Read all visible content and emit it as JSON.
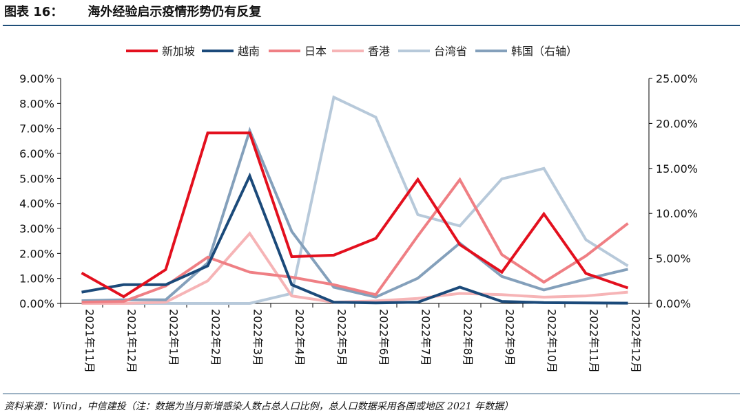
{
  "figure": {
    "label": "图表 16：",
    "title": "海外经验启示疫情形势仍有反复"
  },
  "source_note": "资料来源：Wind，中信建投（注：数据为当月新增感染人数占总人口比例，总人口数据采用各国或地区 2021 年数据）",
  "chart_data": {
    "type": "line",
    "categories": [
      "2021年11月",
      "2021年12月",
      "2022年1月",
      "2022年2月",
      "2022年3月",
      "2022年4月",
      "2022年5月",
      "2022年6月",
      "2022年7月",
      "2022年8月",
      "2022年9月",
      "2022年10月",
      "2022年11月",
      "2022年12月"
    ],
    "y_left": {
      "ticks": [
        "0.00%",
        "1.00%",
        "2.00%",
        "3.00%",
        "4.00%",
        "5.00%",
        "6.00%",
        "7.00%",
        "8.00%",
        "9.00%"
      ],
      "range": [
        0,
        9
      ]
    },
    "y_right": {
      "ticks": [
        "0.00%",
        "5.00%",
        "10.00%",
        "15.00%",
        "20.00%",
        "25.00%"
      ],
      "range": [
        0,
        25
      ]
    },
    "legend_position": "top-center",
    "series": [
      {
        "name": "新加坡",
        "color": "#e3101e",
        "axis": "left",
        "values": [
          1.22,
          0.27,
          1.35,
          6.82,
          6.82,
          1.87,
          1.93,
          2.6,
          4.96,
          2.35,
          1.25,
          3.58,
          1.2,
          0.62
        ]
      },
      {
        "name": "越南",
        "color": "#1b4a7a",
        "axis": "left",
        "values": [
          0.45,
          0.75,
          0.75,
          1.5,
          5.1,
          0.75,
          0.05,
          0.02,
          0.05,
          0.65,
          0.08,
          0.03,
          0.02,
          0.01
        ]
      },
      {
        "name": "日本",
        "color": "#ef7f84",
        "axis": "left",
        "values": [
          0.05,
          0.08,
          0.7,
          1.85,
          1.25,
          1.05,
          0.75,
          0.35,
          2.7,
          4.95,
          1.95,
          0.85,
          1.9,
          3.2
        ]
      },
      {
        "name": "香港",
        "color": "#f6b4b6",
        "axis": "left",
        "values": [
          0.0,
          0.0,
          0.05,
          0.9,
          2.8,
          0.3,
          0.05,
          0.1,
          0.2,
          0.4,
          0.35,
          0.25,
          0.3,
          0.45
        ]
      },
      {
        "name": "台湾省",
        "color": "#b7c9da",
        "axis": "left",
        "values": [
          0.0,
          0.0,
          0.0,
          0.0,
          0.0,
          0.4,
          8.25,
          7.45,
          3.55,
          3.1,
          4.98,
          5.4,
          2.55,
          1.5
        ]
      },
      {
        "name": "韩国（右轴）",
        "color": "#84a0bb",
        "axis": "right",
        "values": [
          0.3,
          0.4,
          0.4,
          4.5,
          19.2,
          8.0,
          1.8,
          0.7,
          2.8,
          6.7,
          3.0,
          1.5,
          2.7,
          3.8
        ]
      }
    ]
  }
}
